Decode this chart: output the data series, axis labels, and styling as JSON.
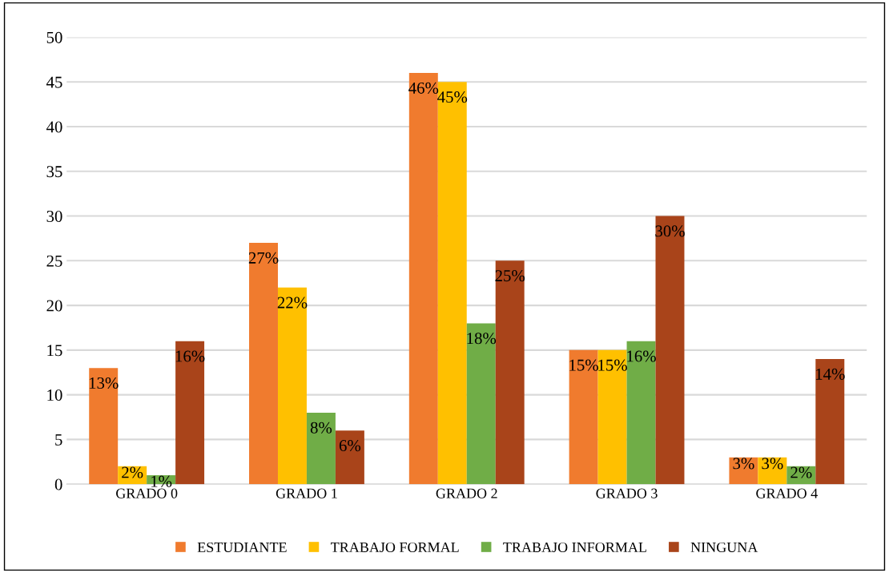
{
  "chart_data": {
    "type": "bar",
    "categories": [
      "GRADO 0",
      "GRADO 1",
      "GRADO 2",
      "GRADO 3",
      "GRADO 4"
    ],
    "series": [
      {
        "name": "ESTUDIANTE",
        "color": "#f07b2e",
        "values": [
          13,
          27,
          46,
          15,
          3
        ],
        "value_labels": [
          "13%",
          "27%",
          "46%",
          "15%",
          "3%"
        ]
      },
      {
        "name": "TRABAJO FORMAL",
        "color": "#ffc000",
        "values": [
          2,
          22,
          45,
          15,
          3
        ],
        "value_labels": [
          "2%",
          "22%",
          "45%",
          "15%",
          "3%"
        ]
      },
      {
        "name": "TRABAJO INFORMAL",
        "color": "#70ad47",
        "values": [
          1,
          8,
          18,
          16,
          2
        ],
        "value_labels": [
          "1%",
          "8%",
          "18%",
          "16%",
          "2%"
        ]
      },
      {
        "name": "NINGUNA",
        "color": "#a9441a",
        "values": [
          16,
          6,
          25,
          30,
          14
        ],
        "value_labels": [
          "16%",
          "6%",
          "25%",
          "30%",
          "14%"
        ]
      }
    ],
    "ylim": [
      0,
      50
    ],
    "yticks": [
      0,
      5,
      10,
      15,
      20,
      25,
      30,
      35,
      40,
      45,
      50
    ],
    "grid": "y",
    "legend": "bottom"
  }
}
